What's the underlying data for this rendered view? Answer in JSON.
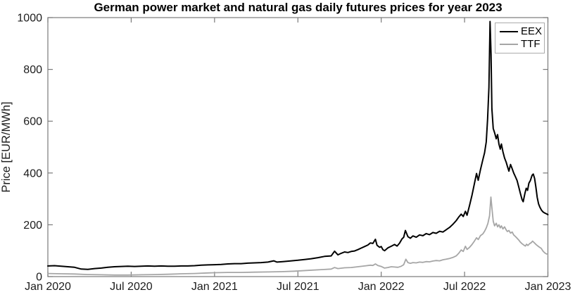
{
  "chart_data": {
    "type": "line",
    "title": "German power market and natural gas daily futures prices for year 2023",
    "xlabel": "",
    "ylabel": "Price [EUR/MWh]",
    "x_unit": "years since Jan 2020",
    "xlim": [
      0,
      3
    ],
    "ylim": [
      0,
      1000
    ],
    "grid": false,
    "legend_position": "top-right",
    "axis_color": "#7a7a7a",
    "tick_label_color": "#1c1c1c",
    "yticks": [
      0,
      200,
      400,
      600,
      800,
      1000
    ],
    "xticks": [
      {
        "t": 0.0,
        "label": "Jan 2020"
      },
      {
        "t": 0.5,
        "label": "Jul 2020"
      },
      {
        "t": 1.0,
        "label": "Jan 2021"
      },
      {
        "t": 1.5,
        "label": "Jul 2021"
      },
      {
        "t": 2.0,
        "label": "Jan 2022"
      },
      {
        "t": 2.5,
        "label": "Jul 2022"
      },
      {
        "t": 3.0,
        "label": "Jan 2023"
      }
    ],
    "series": [
      {
        "name": "EEX",
        "color": "#000000",
        "line_width": 2,
        "points": [
          [
            0,
            41
          ],
          [
            0.04,
            42
          ],
          [
            0.08,
            40
          ],
          [
            0.12,
            38
          ],
          [
            0.16,
            36
          ],
          [
            0.2,
            29
          ],
          [
            0.24,
            28
          ],
          [
            0.28,
            31
          ],
          [
            0.32,
            33
          ],
          [
            0.36,
            36
          ],
          [
            0.4,
            38
          ],
          [
            0.44,
            39
          ],
          [
            0.48,
            40
          ],
          [
            0.52,
            39
          ],
          [
            0.56,
            40
          ],
          [
            0.6,
            41
          ],
          [
            0.64,
            40
          ],
          [
            0.68,
            41
          ],
          [
            0.72,
            40
          ],
          [
            0.76,
            40
          ],
          [
            0.8,
            41
          ],
          [
            0.84,
            41
          ],
          [
            0.88,
            42
          ],
          [
            0.92,
            44
          ],
          [
            0.96,
            45
          ],
          [
            1,
            46
          ],
          [
            1.04,
            47
          ],
          [
            1.08,
            49
          ],
          [
            1.12,
            50
          ],
          [
            1.16,
            50
          ],
          [
            1.2,
            52
          ],
          [
            1.24,
            53
          ],
          [
            1.28,
            54
          ],
          [
            1.32,
            56
          ],
          [
            1.355,
            61
          ],
          [
            1.375,
            56
          ],
          [
            1.41,
            58
          ],
          [
            1.45,
            60
          ],
          [
            1.5,
            63
          ],
          [
            1.54,
            66
          ],
          [
            1.58,
            69
          ],
          [
            1.62,
            73
          ],
          [
            1.66,
            78
          ],
          [
            1.7,
            80
          ],
          [
            1.72,
            98
          ],
          [
            1.74,
            84
          ],
          [
            1.76,
            90
          ],
          [
            1.78,
            95
          ],
          [
            1.8,
            93
          ],
          [
            1.82,
            97
          ],
          [
            1.84,
            99
          ],
          [
            1.86,
            104
          ],
          [
            1.88,
            110
          ],
          [
            1.9,
            116
          ],
          [
            1.92,
            122
          ],
          [
            1.935,
            130
          ],
          [
            1.95,
            128
          ],
          [
            1.965,
            144
          ],
          [
            1.975,
            121
          ],
          [
            1.99,
            113
          ],
          [
            2,
            116
          ],
          [
            2.01,
            104
          ],
          [
            2.02,
            100
          ],
          [
            2.04,
            111
          ],
          [
            2.06,
            117
          ],
          [
            2.08,
            124
          ],
          [
            2.095,
            118
          ],
          [
            2.11,
            129
          ],
          [
            2.125,
            146
          ],
          [
            2.135,
            152
          ],
          [
            2.145,
            178
          ],
          [
            2.16,
            154
          ],
          [
            2.175,
            148
          ],
          [
            2.19,
            157
          ],
          [
            2.21,
            152
          ],
          [
            2.23,
            161
          ],
          [
            2.25,
            158
          ],
          [
            2.27,
            166
          ],
          [
            2.29,
            162
          ],
          [
            2.31,
            170
          ],
          [
            2.33,
            167
          ],
          [
            2.35,
            175
          ],
          [
            2.37,
            172
          ],
          [
            2.39,
            181
          ],
          [
            2.41,
            190
          ],
          [
            2.43,
            202
          ],
          [
            2.45,
            216
          ],
          [
            2.465,
            230
          ],
          [
            2.48,
            241
          ],
          [
            2.492,
            232
          ],
          [
            2.505,
            252
          ],
          [
            2.515,
            237
          ],
          [
            2.53,
            275
          ],
          [
            2.545,
            315
          ],
          [
            2.56,
            362
          ],
          [
            2.572,
            398
          ],
          [
            2.582,
            372
          ],
          [
            2.595,
            412
          ],
          [
            2.61,
            452
          ],
          [
            2.62,
            478
          ],
          [
            2.63,
            520
          ],
          [
            2.638,
            608
          ],
          [
            2.646,
            730
          ],
          [
            2.653,
            985
          ],
          [
            2.659,
            860
          ],
          [
            2.664,
            648
          ],
          [
            2.672,
            572
          ],
          [
            2.68,
            556
          ],
          [
            2.69,
            532
          ],
          [
            2.698,
            548
          ],
          [
            2.706,
            512
          ],
          [
            2.714,
            492
          ],
          [
            2.721,
            512
          ],
          [
            2.73,
            482
          ],
          [
            2.74,
            458
          ],
          [
            2.75,
            441
          ],
          [
            2.757,
            426
          ],
          [
            2.766,
            407
          ],
          [
            2.776,
            433
          ],
          [
            2.786,
            416
          ],
          [
            2.795,
            400
          ],
          [
            2.805,
            386
          ],
          [
            2.815,
            371
          ],
          [
            2.825,
            346
          ],
          [
            2.835,
            321
          ],
          [
            2.845,
            297
          ],
          [
            2.852,
            289
          ],
          [
            2.862,
            321
          ],
          [
            2.87,
            341
          ],
          [
            2.878,
            333
          ],
          [
            2.886,
            361
          ],
          [
            2.895,
            371
          ],
          [
            2.905,
            391
          ],
          [
            2.912,
            396
          ],
          [
            2.92,
            379
          ],
          [
            2.928,
            346
          ],
          [
            2.936,
            306
          ],
          [
            2.944,
            281
          ],
          [
            2.952,
            268
          ],
          [
            2.962,
            256
          ],
          [
            2.972,
            249
          ],
          [
            2.982,
            245
          ],
          [
            2.992,
            242
          ],
          [
            3,
            239
          ]
        ]
      },
      {
        "name": "TTF",
        "color": "#a6a6a6",
        "line_width": 1.8,
        "points": [
          [
            0,
            12
          ],
          [
            0.08,
            11
          ],
          [
            0.16,
            10
          ],
          [
            0.24,
            8
          ],
          [
            0.32,
            7
          ],
          [
            0.4,
            6
          ],
          [
            0.48,
            6
          ],
          [
            0.56,
            7
          ],
          [
            0.64,
            8
          ],
          [
            0.72,
            9
          ],
          [
            0.8,
            11
          ],
          [
            0.88,
            12
          ],
          [
            0.96,
            14
          ],
          [
            1,
            15
          ],
          [
            1.08,
            16
          ],
          [
            1.16,
            16
          ],
          [
            1.24,
            17
          ],
          [
            1.32,
            18
          ],
          [
            1.4,
            19
          ],
          [
            1.48,
            21
          ],
          [
            1.56,
            24
          ],
          [
            1.64,
            27
          ],
          [
            1.7,
            29
          ],
          [
            1.72,
            35
          ],
          [
            1.74,
            31
          ],
          [
            1.78,
            34
          ],
          [
            1.82,
            35
          ],
          [
            1.86,
            38
          ],
          [
            1.9,
            41
          ],
          [
            1.935,
            44
          ],
          [
            1.95,
            43
          ],
          [
            1.965,
            49
          ],
          [
            1.98,
            43
          ],
          [
            2,
            39
          ],
          [
            2.02,
            33
          ],
          [
            2.04,
            35
          ],
          [
            2.06,
            38
          ],
          [
            2.08,
            37
          ],
          [
            2.1,
            36
          ],
          [
            2.12,
            40
          ],
          [
            2.135,
            46
          ],
          [
            2.148,
            67
          ],
          [
            2.16,
            54
          ],
          [
            2.175,
            51
          ],
          [
            2.19,
            54
          ],
          [
            2.21,
            53
          ],
          [
            2.23,
            56
          ],
          [
            2.25,
            55
          ],
          [
            2.27,
            58
          ],
          [
            2.29,
            57
          ],
          [
            2.31,
            60
          ],
          [
            2.33,
            62
          ],
          [
            2.35,
            61
          ],
          [
            2.37,
            65
          ],
          [
            2.39,
            67
          ],
          [
            2.41,
            70
          ],
          [
            2.43,
            74
          ],
          [
            2.45,
            80
          ],
          [
            2.465,
            90
          ],
          [
            2.48,
            103
          ],
          [
            2.492,
            97
          ],
          [
            2.505,
            117
          ],
          [
            2.515,
            105
          ],
          [
            2.53,
            113
          ],
          [
            2.545,
            124
          ],
          [
            2.56,
            138
          ],
          [
            2.572,
            150
          ],
          [
            2.582,
            143
          ],
          [
            2.595,
            158
          ],
          [
            2.61,
            165
          ],
          [
            2.62,
            175
          ],
          [
            2.63,
            188
          ],
          [
            2.64,
            205
          ],
          [
            2.65,
            235
          ],
          [
            2.658,
            307
          ],
          [
            2.665,
            258
          ],
          [
            2.672,
            214
          ],
          [
            2.68,
            196
          ],
          [
            2.69,
            206
          ],
          [
            2.698,
            192
          ],
          [
            2.706,
            200
          ],
          [
            2.714,
            188
          ],
          [
            2.721,
            196
          ],
          [
            2.73,
            184
          ],
          [
            2.74,
            192
          ],
          [
            2.75,
            180
          ],
          [
            2.757,
            174
          ],
          [
            2.766,
            178
          ],
          [
            2.776,
            168
          ],
          [
            2.786,
            172
          ],
          [
            2.795,
            161
          ],
          [
            2.805,
            155
          ],
          [
            2.815,
            148
          ],
          [
            2.825,
            141
          ],
          [
            2.835,
            133
          ],
          [
            2.845,
            127
          ],
          [
            2.855,
            122
          ],
          [
            2.865,
            118
          ],
          [
            2.872,
            125
          ],
          [
            2.88,
            120
          ],
          [
            2.89,
            127
          ],
          [
            2.9,
            131
          ],
          [
            2.908,
            137
          ],
          [
            2.916,
            132
          ],
          [
            2.924,
            127
          ],
          [
            2.932,
            122
          ],
          [
            2.94,
            118
          ],
          [
            2.95,
            113
          ],
          [
            2.96,
            109
          ],
          [
            2.97,
            99
          ],
          [
            2.98,
            92
          ],
          [
            2.99,
            88
          ],
          [
            3,
            86
          ]
        ]
      }
    ],
    "legend": [
      {
        "label": "EEX",
        "color": "#000000"
      },
      {
        "label": "TTF",
        "color": "#a6a6a6"
      }
    ]
  }
}
